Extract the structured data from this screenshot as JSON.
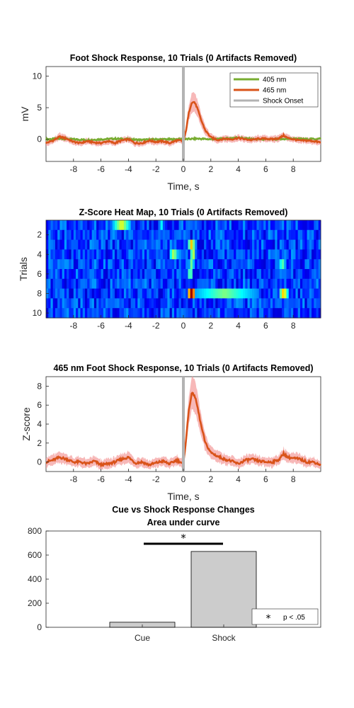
{
  "chart_data": [
    {
      "type": "line",
      "title": "Foot Shock Response, 10 Trials (0 Artifacts Removed)",
      "xlabel": "Time, s",
      "ylabel": "mV",
      "xlim": [
        -10,
        10
      ],
      "ylim": [
        -3.5,
        11.5
      ],
      "xticks": [
        -8,
        -6,
        -4,
        -2,
        0,
        2,
        4,
        6,
        8
      ],
      "yticks": [
        0,
        5,
        10
      ],
      "legend_position": "top-right",
      "onset_x": 0,
      "series": [
        {
          "name": "405 nm",
          "color": "#77ac30",
          "band": false,
          "x": [
            -10,
            -9,
            -8,
            -7,
            -6,
            -5,
            -4,
            -3,
            -2,
            -1,
            0,
            1,
            2,
            3,
            4,
            5,
            6,
            7,
            8,
            9,
            10
          ],
          "y": [
            0,
            0.1,
            0,
            -0.1,
            0,
            0.1,
            0,
            -0.1,
            0,
            0,
            0,
            0.1,
            0,
            0.1,
            0.3,
            0,
            0,
            0,
            0.1,
            0,
            0.1
          ]
        },
        {
          "name": "465 nm",
          "color": "#d95319",
          "band": true,
          "band_color": "#f4a0a0",
          "x": [
            -10,
            -9.5,
            -9,
            -8.5,
            -8,
            -7.5,
            -7,
            -6.5,
            -6,
            -5.5,
            -5,
            -4.5,
            -4,
            -3.5,
            -3,
            -2.5,
            -2,
            -1.5,
            -1,
            -0.5,
            -0.2,
            0,
            0.2,
            0.4,
            0.6,
            0.8,
            1.0,
            1.3,
            1.6,
            2.0,
            2.5,
            3,
            3.5,
            4,
            4.5,
            5,
            5.5,
            6,
            6.5,
            7,
            7.3,
            7.6,
            8,
            8.5,
            9,
            9.5,
            10
          ],
          "y": [
            -0.6,
            -0.2,
            0.4,
            0.1,
            -0.4,
            -0.6,
            -0.3,
            -0.5,
            -0.6,
            -0.3,
            -0.6,
            -0.2,
            0,
            -0.6,
            -0.6,
            -0.2,
            -0.4,
            -0.3,
            -0.6,
            -0.2,
            -0.2,
            -0.5,
            1.5,
            4.2,
            5.8,
            5.9,
            5.0,
            3.0,
            1.4,
            0.3,
            -0.1,
            0.1,
            0,
            0.2,
            0,
            -0.1,
            0.1,
            0.1,
            0,
            0.2,
            0.6,
            0.2,
            0,
            -0.2,
            -0.2,
            -0.3,
            -0.5
          ]
        },
        {
          "name": "Shock Onset",
          "color": "#b3b3b3",
          "band": false,
          "x": [],
          "y": []
        }
      ]
    },
    {
      "type": "heatmap",
      "title": "Z-Score Heat Map, 10 Trials (0 Artifacts Removed)",
      "xlabel": "",
      "ylabel": "Trials",
      "xlim": [
        -10,
        10
      ],
      "xticks": [
        -8,
        -6,
        -4,
        -2,
        0,
        2,
        4,
        6,
        8
      ],
      "yticks": [
        2,
        4,
        6,
        8,
        10
      ],
      "rows": 10,
      "colormap": "jet",
      "hot_spots": [
        {
          "trial": 1,
          "x": -4.5,
          "width": 1.2,
          "value": 0.62
        },
        {
          "trial": 1,
          "x": -1.6,
          "width": 0.4,
          "value": 0.38
        },
        {
          "trial": 3,
          "x": 0.6,
          "width": 0.5,
          "value": 0.7
        },
        {
          "trial": 4,
          "x": -0.7,
          "width": 0.6,
          "value": 0.58
        },
        {
          "trial": 4,
          "x": 0.7,
          "width": 0.4,
          "value": 0.62
        },
        {
          "trial": 5,
          "x": 0.6,
          "width": 0.4,
          "value": 0.5
        },
        {
          "trial": 5,
          "x": 7.2,
          "width": 0.5,
          "value": 0.5
        },
        {
          "trial": 8,
          "x": 0.6,
          "width": 0.6,
          "value": 1.0
        },
        {
          "trial": 8,
          "x": 3.0,
          "width": 5.0,
          "value": 0.5
        },
        {
          "trial": 8,
          "x": 7.3,
          "width": 0.6,
          "value": 0.72
        },
        {
          "trial": 6,
          "x": 0.5,
          "width": 0.4,
          "value": 0.55
        }
      ]
    },
    {
      "type": "line",
      "title": "465 nm Foot Shock Response, 10 Trials (0 Artifacts Removed)",
      "xlabel": "Time, s",
      "ylabel": "Z-score",
      "xlim": [
        -10,
        10
      ],
      "ylim": [
        -1,
        9
      ],
      "xticks": [
        -8,
        -6,
        -4,
        -2,
        0,
        2,
        4,
        6,
        8
      ],
      "yticks": [
        0,
        2,
        4,
        6,
        8
      ],
      "onset_x": 0,
      "series": [
        {
          "name": "",
          "color": "#d95319",
          "band": true,
          "band_color": "#f4a0a0",
          "x": [
            -10,
            -9.5,
            -9,
            -8.5,
            -8,
            -7.5,
            -7,
            -6.5,
            -6,
            -5.5,
            -5,
            -4.5,
            -4,
            -3.5,
            -3,
            -2.5,
            -2,
            -1.5,
            -1,
            -0.5,
            -0.2,
            0,
            0.2,
            0.4,
            0.6,
            0.8,
            1.0,
            1.3,
            1.6,
            2.0,
            2.5,
            3,
            3.5,
            4,
            4.5,
            5,
            5.5,
            6,
            6.5,
            7,
            7.3,
            7.6,
            8,
            8.5,
            9,
            9.5,
            10
          ],
          "y": [
            0,
            0.2,
            0.5,
            0.3,
            0,
            0,
            -0.2,
            0.1,
            -0.3,
            -0.2,
            0,
            0.3,
            0.5,
            -0.1,
            0,
            -0.3,
            -0.1,
            0.1,
            -0.2,
            0.2,
            0,
            -0.3,
            2.5,
            5.5,
            7.2,
            7.1,
            6.0,
            3.8,
            2.0,
            1.0,
            0.6,
            0.3,
            0.1,
            -0.2,
            0.2,
            0.3,
            0.1,
            0,
            0,
            0.3,
            0.9,
            0.5,
            0.4,
            0.3,
            0,
            0,
            -0.3
          ]
        }
      ]
    },
    {
      "type": "bar",
      "title": "Cue vs Shock Response Changes",
      "subtitle": "Area under curve",
      "categories": [
        "Cue",
        "Shock"
      ],
      "values": [
        42,
        630
      ],
      "ylim": [
        0,
        800
      ],
      "yticks": [
        0,
        200,
        400,
        600,
        800
      ],
      "bar_color": "#cccccc",
      "significance_marker": "*",
      "legend_position": "bottom-right",
      "legend_text": "p < .05"
    }
  ]
}
